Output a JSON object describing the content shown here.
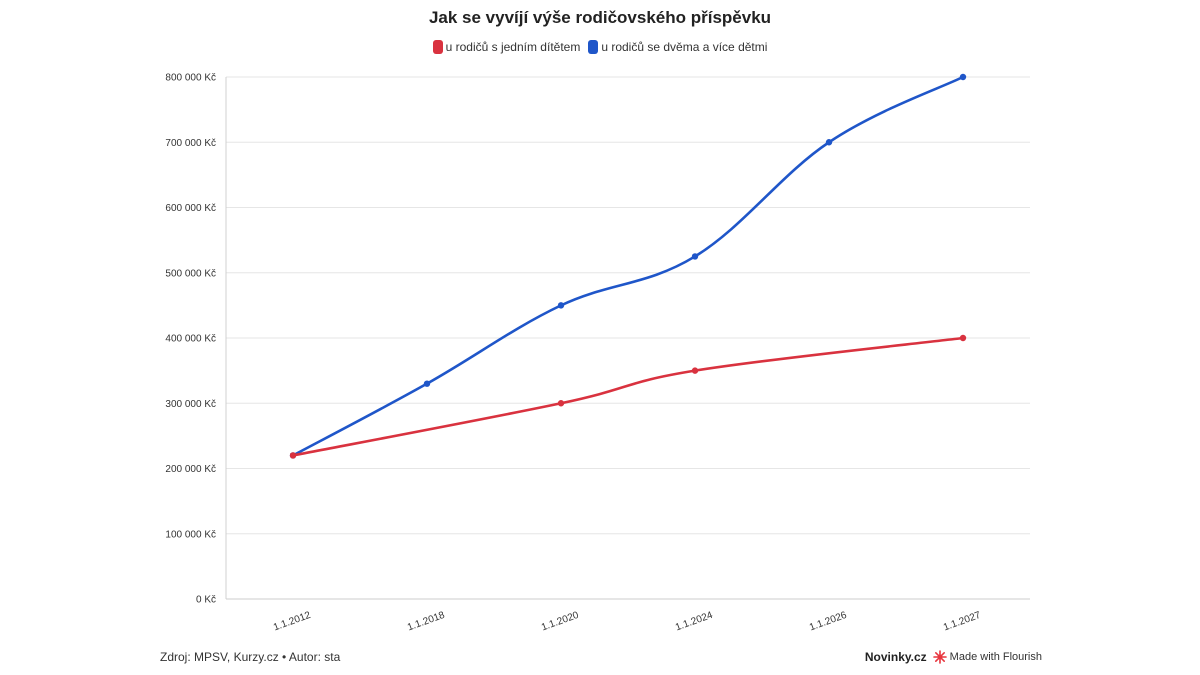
{
  "header": {
    "title": "Jak se vyvíjí výše rodičovského příspěvku"
  },
  "footer": {
    "source": "Zdroj: MPSV, Kurzy.cz • Autor: sta",
    "brand": "Novinky.cz",
    "made_with": "Made with Flourish"
  },
  "colors": {
    "series_one_child": "#d9323f",
    "series_two_plus": "#1f56c9",
    "grid": "#e6e6e6",
    "flourish_icon": "#e8363f"
  },
  "chart_data": {
    "type": "line",
    "title": "Jak se vyvíjí výše rodičovského příspěvku",
    "categories": [
      "1.1.2012",
      "1.1.2018",
      "1.1.2020",
      "1.1.2024",
      "1.1.2026",
      "1.1.2027"
    ],
    "series": [
      {
        "name": "u rodičů s jedním dítětem",
        "color": "#d9323f",
        "values": [
          220000,
          null,
          300000,
          350000,
          null,
          400000
        ]
      },
      {
        "name": "u rodičů se dvěma a více dětmi",
        "color": "#1f56c9",
        "values": [
          220000,
          330000,
          450000,
          525000,
          700000,
          800000
        ]
      }
    ],
    "y_ticks": [
      "0 Kč",
      "100 000 Kč",
      "200 000 Kč",
      "300 000 Kč",
      "400 000 Kč",
      "500 000 Kč",
      "600 000 Kč",
      "700 000 Kč",
      "800 000 Kč"
    ],
    "ylim": [
      0,
      800000
    ],
    "grid": true,
    "legend_position": "top-center"
  }
}
